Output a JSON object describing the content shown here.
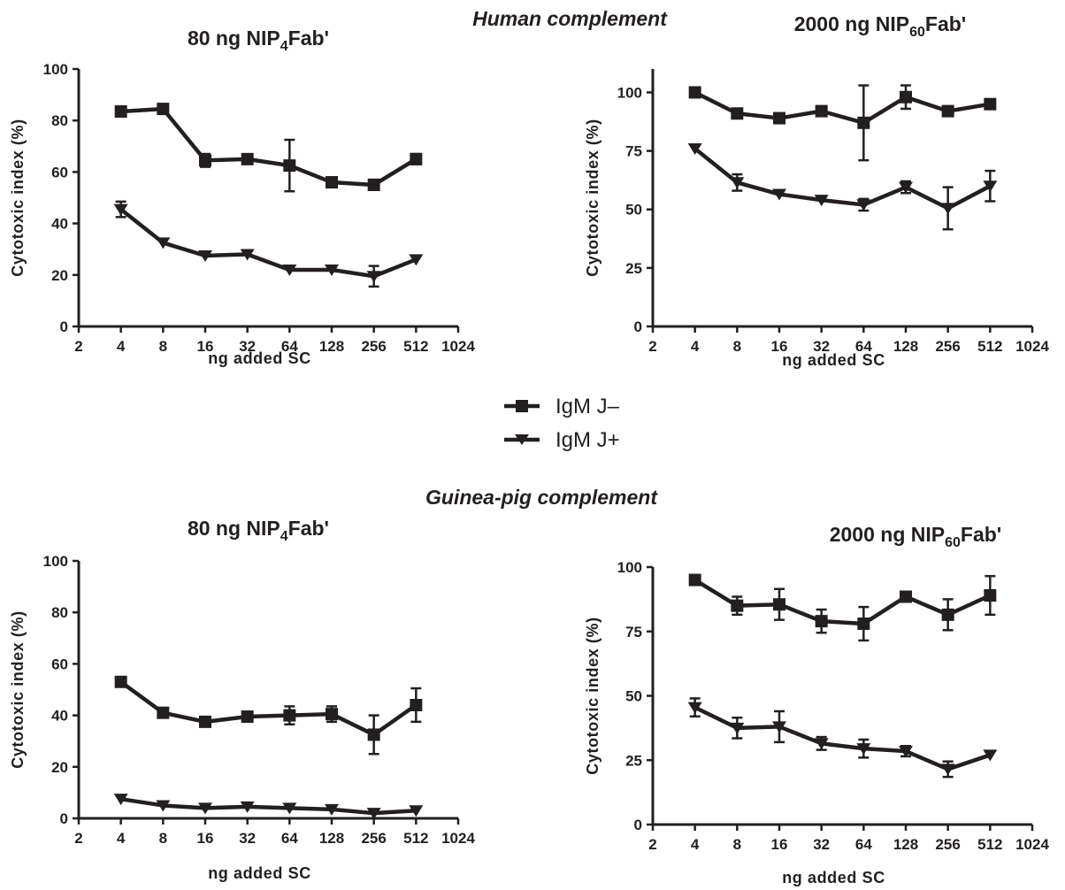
{
  "sections": [
    {
      "label": "Human complement"
    },
    {
      "label": "Guinea-pig complement"
    }
  ],
  "legend": [
    {
      "label": "IgM J–",
      "marker": "square"
    },
    {
      "label": "IgM J+",
      "marker": "triangle-down"
    }
  ],
  "chart_data": [
    {
      "type": "line",
      "title_main": "80 ng NIP",
      "title_sub": "4",
      "title_end": "Fab'",
      "xlabel": "ng added SC",
      "ylabel": "Cytotoxic index (%)",
      "xscale": "log2",
      "xlim": [
        2,
        1024
      ],
      "x_ticks": [
        "2",
        "4",
        "8",
        "16",
        "32",
        "64",
        "128",
        "256",
        "512",
        "1024"
      ],
      "ylim": [
        0,
        100
      ],
      "y_ticks": [
        "0",
        "20",
        "40",
        "60",
        "80",
        "100"
      ],
      "x": [
        4,
        8,
        16,
        32,
        64,
        128,
        256,
        512
      ],
      "series": [
        {
          "name": "IgM J–",
          "marker": "square",
          "values": [
            83.5,
            84.5,
            64.5,
            65,
            62.5,
            56,
            55,
            65
          ],
          "err": [
            1,
            1,
            2.5,
            1.5,
            10,
            1.5,
            2,
            2
          ]
        },
        {
          "name": "IgM J+",
          "marker": "triangle-down",
          "values": [
            45.5,
            32.5,
            27.5,
            28,
            22,
            22,
            19.5,
            26
          ],
          "err": [
            3,
            1,
            1,
            1,
            1,
            1,
            4,
            1
          ]
        }
      ]
    },
    {
      "type": "line",
      "title_main": "2000 ng NIP",
      "title_sub": "60",
      "title_end": "Fab'",
      "xlabel": "ng added SC",
      "ylabel": "Cytotoxic index (%)",
      "xscale": "log2",
      "xlim": [
        2,
        1024
      ],
      "x_ticks": [
        "2",
        "4",
        "8",
        "16",
        "32",
        "64",
        "128",
        "256",
        "512",
        "1024"
      ],
      "ylim": [
        0,
        110
      ],
      "y_ticks": [
        "0",
        "25",
        "50",
        "75",
        "100"
      ],
      "x": [
        4,
        8,
        16,
        32,
        64,
        128,
        256,
        512
      ],
      "series": [
        {
          "name": "IgM J–",
          "marker": "square",
          "values": [
            100,
            91,
            89,
            92,
            87,
            98,
            92,
            95
          ],
          "err": [
            1,
            1,
            1,
            1,
            16,
            5,
            1.5,
            1
          ]
        },
        {
          "name": "IgM J+",
          "marker": "triangle-down",
          "values": [
            76,
            61.5,
            56.5,
            54,
            52,
            59.5,
            50.5,
            60
          ],
          "err": [
            1,
            3.5,
            1,
            1,
            2.5,
            2.5,
            9,
            6.5
          ]
        }
      ]
    },
    {
      "type": "line",
      "title_main": "80 ng NIP",
      "title_sub": "4",
      "title_end": "Fab'",
      "xlabel": "ng added SC",
      "ylabel": "Cytotoxic index (%)",
      "xscale": "log2",
      "xlim": [
        2,
        1024
      ],
      "x_ticks": [
        "2",
        "4",
        "8",
        "16",
        "32",
        "64",
        "128",
        "256",
        "512",
        "1024"
      ],
      "ylim": [
        0,
        100
      ],
      "y_ticks": [
        "0",
        "20",
        "40",
        "60",
        "80",
        "100"
      ],
      "x": [
        4,
        8,
        16,
        32,
        64,
        128,
        256,
        512
      ],
      "series": [
        {
          "name": "IgM J–",
          "marker": "square",
          "values": [
            53,
            41,
            37.5,
            39.5,
            40,
            40.5,
            32.5,
            44
          ],
          "err": [
            1,
            1,
            1.5,
            1.5,
            3.5,
            3,
            7.5,
            6.5
          ]
        },
        {
          "name": "IgM J+",
          "marker": "triangle-down",
          "values": [
            7.5,
            5,
            4,
            4.5,
            4,
            3.5,
            2,
            3
          ],
          "err": [
            0.5,
            0.5,
            0.5,
            0.5,
            0.5,
            0.5,
            0.5,
            0.5
          ]
        }
      ]
    },
    {
      "type": "line",
      "title_main": "2000 ng NIP",
      "title_sub": "60",
      "title_end": "Fab'",
      "xlabel": "ng added SC",
      "ylabel": "Cytotoxic index (%)",
      "xscale": "log2",
      "xlim": [
        2,
        1024
      ],
      "x_ticks": [
        "2",
        "4",
        "8",
        "16",
        "32",
        "64",
        "128",
        "256",
        "512",
        "1024"
      ],
      "ylim": [
        0,
        100
      ],
      "y_ticks": [
        "0",
        "25",
        "50",
        "75",
        "100"
      ],
      "x": [
        4,
        8,
        16,
        32,
        64,
        128,
        256,
        512
      ],
      "series": [
        {
          "name": "IgM J–",
          "marker": "square",
          "values": [
            95,
            85,
            85.5,
            79,
            78,
            88.5,
            81.5,
            89
          ],
          "err": [
            1,
            3.5,
            6,
            4.5,
            6.5,
            1.5,
            6,
            7.5
          ]
        },
        {
          "name": "IgM J+",
          "marker": "triangle-down",
          "values": [
            45.5,
            37.5,
            38,
            31.5,
            29.5,
            28.5,
            21.5,
            27
          ],
          "err": [
            3.5,
            4,
            6,
            2.5,
            3.5,
            2,
            3,
            1
          ]
        }
      ]
    }
  ]
}
